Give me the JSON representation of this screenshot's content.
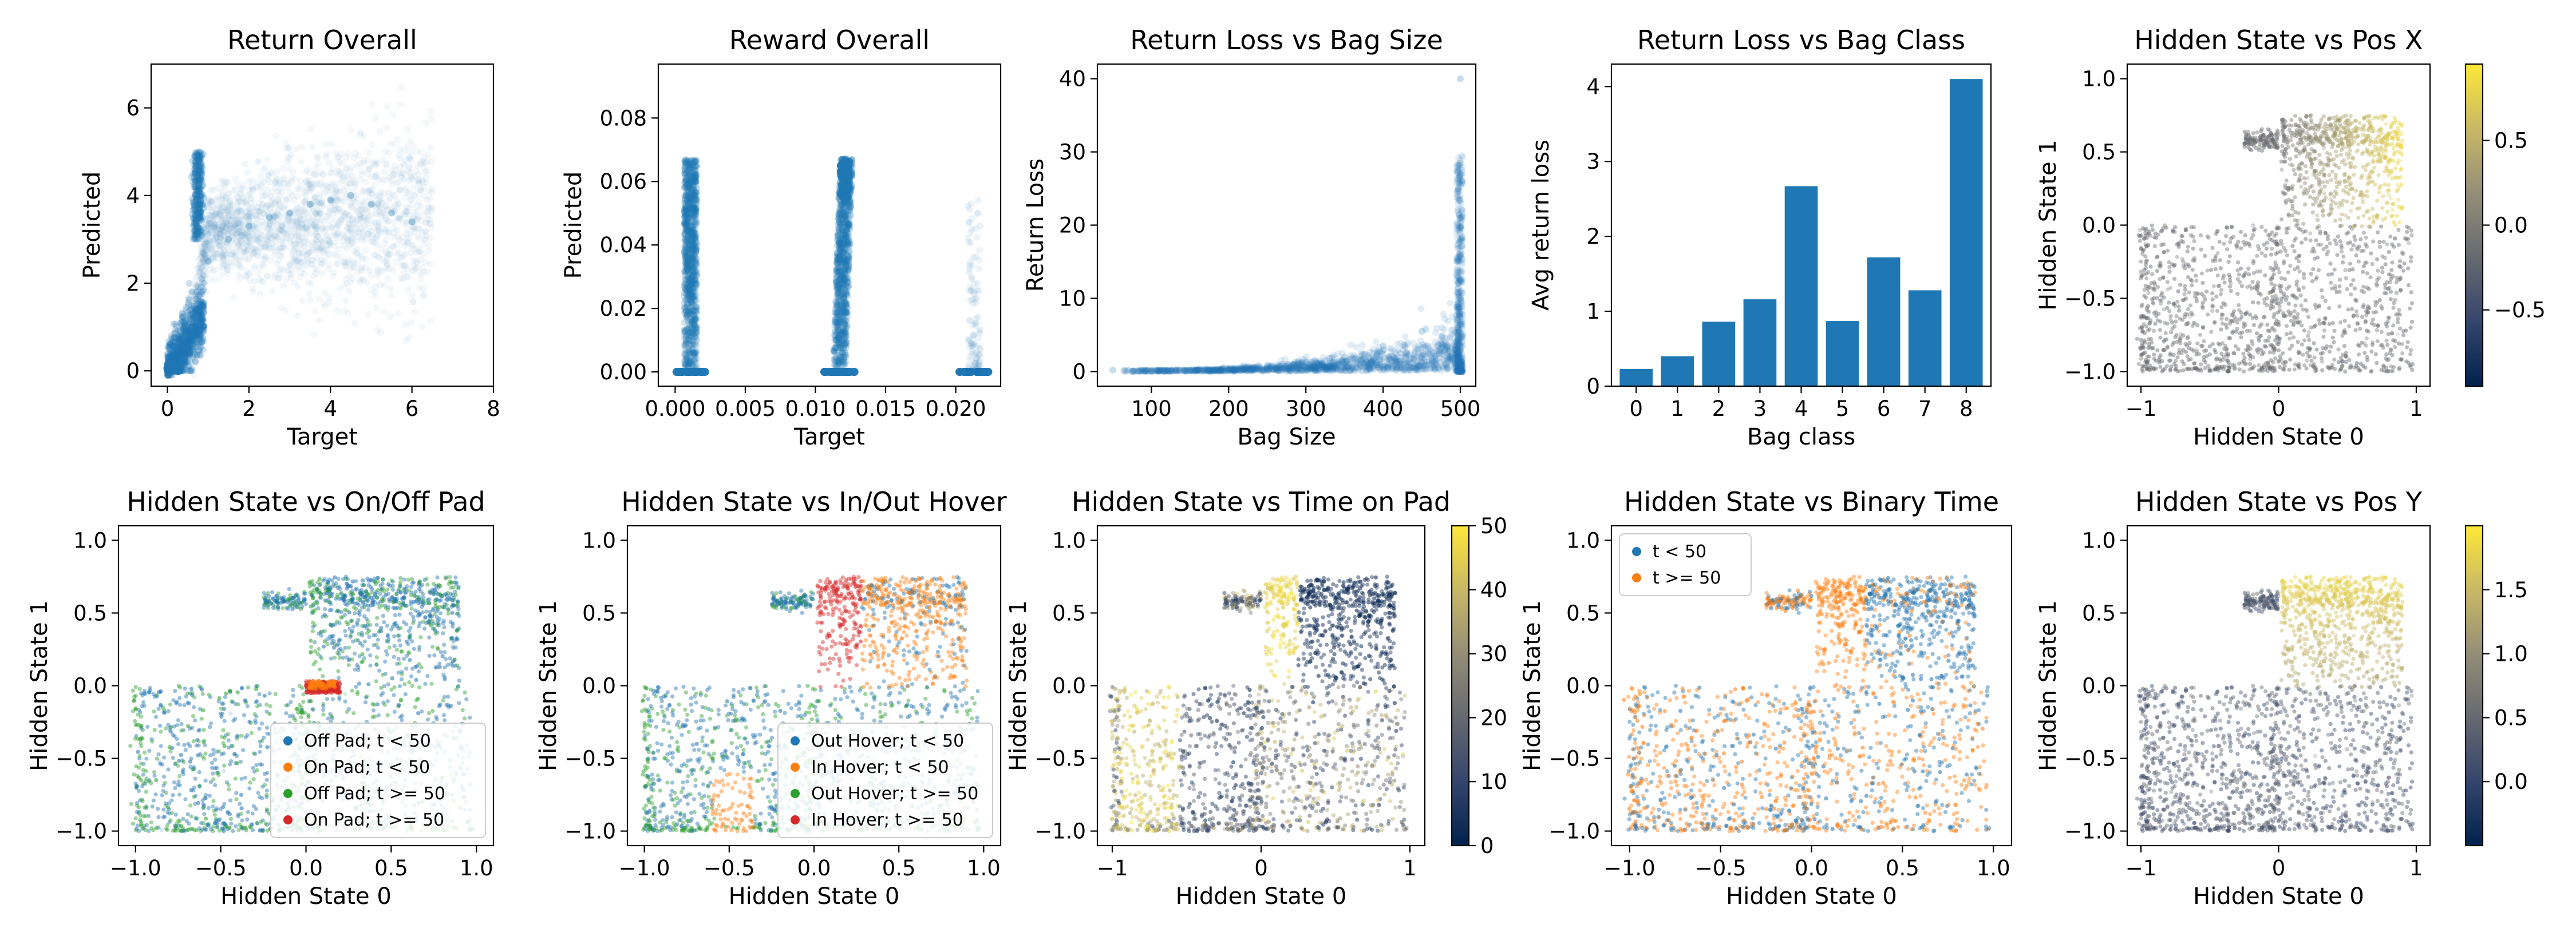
{
  "colors": {
    "c0": "#1f77b4",
    "c1": "#ff7f0e",
    "c2": "#2ca02c",
    "c3": "#d62728",
    "cividis": [
      "#00224e",
      "#35456c",
      "#666970",
      "#948e77",
      "#c8b866",
      "#fee838"
    ]
  },
  "chart_data": [
    {
      "type": "scatter",
      "title": "Return Overall",
      "xlabel": "Target",
      "ylabel": "Predicted",
      "xlim": [
        -0.4,
        8
      ],
      "ylim": [
        -0.35,
        7
      ],
      "xticks": [
        0,
        2,
        4,
        6,
        8
      ],
      "yticks": [
        0,
        2,
        4,
        6
      ],
      "x": [
        0.05,
        0.2,
        0.4,
        0.6,
        0.7,
        0.8,
        1.0,
        1.5,
        2,
        2.5,
        3,
        3.5,
        4,
        4.5,
        5,
        5.5,
        6
      ],
      "y": [
        0.02,
        0.3,
        1.0,
        1.8,
        3.2,
        4.5,
        2.5,
        3.0,
        3.3,
        3.5,
        3.6,
        3.8,
        3.9,
        4.0,
        3.8,
        3.6,
        3.4
      ]
    },
    {
      "type": "scatter",
      "title": "Reward Overall",
      "xlabel": "Target",
      "ylabel": "Predicted",
      "xlim": [
        -0.0012,
        0.0232
      ],
      "ylim": [
        -0.0045,
        0.097
      ],
      "xticks": [
        0.0,
        0.005,
        0.01,
        0.015,
        0.02
      ],
      "xticklabels": [
        "0.000",
        "0.005",
        "0.010",
        "0.015",
        "0.020"
      ],
      "yticks": [
        0.0,
        0.02,
        0.04,
        0.06,
        0.08
      ],
      "yticklabels": [
        "0.00",
        "0.02",
        "0.04",
        "0.06",
        "0.08"
      ],
      "clusters": [
        {
          "x": 0.0011,
          "y_range": [
            0.0,
            0.067
          ]
        },
        {
          "x": 0.0117,
          "y_range": [
            0.0,
            0.067
          ]
        },
        {
          "x": 0.0213,
          "y_range": [
            0.0,
            0.054
          ]
        }
      ]
    },
    {
      "type": "scatter",
      "title": "Return Loss vs Bag Size",
      "xlabel": "Bag Size",
      "ylabel": "Return Loss",
      "xlim": [
        30,
        520
      ],
      "ylim": [
        -2,
        42
      ],
      "xticks": [
        100,
        200,
        300,
        400,
        500
      ],
      "yticks": [
        0,
        10,
        20,
        30,
        40
      ],
      "x": [
        50,
        100,
        150,
        200,
        250,
        300,
        350,
        400,
        450,
        480,
        500,
        500,
        500,
        500
      ],
      "y": [
        0.2,
        0.1,
        0.2,
        0.3,
        0.8,
        1.2,
        2.0,
        3.5,
        5.5,
        3.0,
        40,
        27,
        18,
        10
      ]
    },
    {
      "type": "bar",
      "title": "Return Loss vs Bag Class",
      "xlabel": "Bag class",
      "ylabel": "Avg return loss",
      "categories": [
        "0",
        "1",
        "2",
        "3",
        "4",
        "5",
        "6",
        "7",
        "8"
      ],
      "values": [
        0.23,
        0.4,
        0.86,
        1.16,
        2.67,
        0.87,
        1.72,
        1.28,
        4.1
      ],
      "ylim": [
        0,
        4.3
      ],
      "yticks": [
        0,
        1,
        2,
        3,
        4
      ]
    },
    {
      "type": "scatter",
      "title": "Hidden State vs Pos X",
      "xlabel": "Hidden State 0",
      "ylabel": "Hidden State 1",
      "xlim": [
        -1.1,
        1.1
      ],
      "ylim": [
        -1.1,
        1.1
      ],
      "xticks": [
        -1,
        0,
        1
      ],
      "yticks": [
        -1.0,
        -0.5,
        0.0,
        0.5,
        1.0
      ],
      "yticklabels": [
        "−1.0",
        "−0.5",
        "0.0",
        "0.5",
        "1.0"
      ],
      "colorbar": {
        "colormap": "cividis",
        "range": [
          -0.95,
          0.95
        ],
        "ticks": [
          -0.5,
          0.0,
          0.5
        ],
        "ticklabels": [
          "−0.5",
          "0.0",
          "0.5"
        ]
      }
    },
    {
      "type": "scatter",
      "title": "Hidden State vs On/Off Pad",
      "xlabel": "Hidden State 0",
      "ylabel": "Hidden State 1",
      "xlim": [
        -1.1,
        1.1
      ],
      "ylim": [
        -1.1,
        1.1
      ],
      "xticks": [
        -1.0,
        -0.5,
        0.0,
        0.5,
        1.0
      ],
      "xticklabels": [
        "−1.0",
        "−0.5",
        "0.0",
        "0.5",
        "1.0"
      ],
      "yticks": [
        -1.0,
        -0.5,
        0.0,
        0.5,
        1.0
      ],
      "yticklabels": [
        "−1.0",
        "−0.5",
        "0.0",
        "0.5",
        "1.0"
      ],
      "series": [
        {
          "name": "Off Pad; t < 50",
          "color": "#1f77b4"
        },
        {
          "name": "On Pad; t < 50",
          "color": "#ff7f0e"
        },
        {
          "name": "Off Pad; t >= 50",
          "color": "#2ca02c"
        },
        {
          "name": "On Pad; t >= 50",
          "color": "#d62728"
        }
      ],
      "legend": "lower-right"
    },
    {
      "type": "scatter",
      "title": "Hidden State vs In/Out Hover",
      "xlabel": "Hidden State 0",
      "ylabel": "Hidden State 1",
      "xlim": [
        -1.1,
        1.1
      ],
      "ylim": [
        -1.1,
        1.1
      ],
      "xticks": [
        -1.0,
        -0.5,
        0.0,
        0.5,
        1.0
      ],
      "xticklabels": [
        "−1.0",
        "−0.5",
        "0.0",
        "0.5",
        "1.0"
      ],
      "yticks": [
        -1.0,
        -0.5,
        0.0,
        0.5,
        1.0
      ],
      "yticklabels": [
        "−1.0",
        "−0.5",
        "0.0",
        "0.5",
        "1.0"
      ],
      "series": [
        {
          "name": "Out Hover; t < 50",
          "color": "#1f77b4"
        },
        {
          "name": "In Hover; t < 50",
          "color": "#ff7f0e"
        },
        {
          "name": "Out Hover; t >= 50",
          "color": "#2ca02c"
        },
        {
          "name": "In Hover; t >= 50",
          "color": "#d62728"
        }
      ],
      "legend": "lower-right"
    },
    {
      "type": "scatter",
      "title": "Hidden State vs Time on Pad",
      "xlabel": "Hidden State 0",
      "ylabel": "Hidden State 1",
      "xlim": [
        -1.1,
        1.1
      ],
      "ylim": [
        -1.1,
        1.1
      ],
      "xticks": [
        -1,
        0,
        1
      ],
      "yticks": [
        -1.0,
        -0.5,
        0.0,
        0.5,
        1.0
      ],
      "yticklabels": [
        "−1.0",
        "−0.5",
        "0.0",
        "0.5",
        "1.0"
      ],
      "colorbar": {
        "colormap": "cividis",
        "range": [
          0,
          50
        ],
        "ticks": [
          0,
          10,
          20,
          30,
          40,
          50
        ],
        "ticklabels": [
          "0",
          "10",
          "20",
          "30",
          "40",
          "50"
        ]
      }
    },
    {
      "type": "scatter",
      "title": "Hidden State vs Binary Time",
      "xlabel": "Hidden State 0",
      "ylabel": "Hidden State 1",
      "xlim": [
        -1.1,
        1.1
      ],
      "ylim": [
        -1.1,
        1.1
      ],
      "xticks": [
        -1.0,
        -0.5,
        0.0,
        0.5,
        1.0
      ],
      "xticklabels": [
        "−1.0",
        "−0.5",
        "0.0",
        "0.5",
        "1.0"
      ],
      "yticks": [
        -1.0,
        -0.5,
        0.0,
        0.5,
        1.0
      ],
      "yticklabels": [
        "−1.0",
        "−0.5",
        "0.0",
        "0.5",
        "1.0"
      ],
      "series": [
        {
          "name": "t < 50",
          "color": "#1f77b4"
        },
        {
          "name": "t >= 50",
          "color": "#ff7f0e"
        }
      ],
      "legend": "upper-left"
    },
    {
      "type": "scatter",
      "title": "Hidden State vs Pos Y",
      "xlabel": "Hidden State 0",
      "ylabel": "Hidden State 1",
      "xlim": [
        -1.1,
        1.1
      ],
      "ylim": [
        -1.1,
        1.1
      ],
      "xticks": [
        -1,
        0,
        1
      ],
      "yticks": [
        -1.0,
        -0.5,
        0.0,
        0.5,
        1.0
      ],
      "yticklabels": [
        "−1.0",
        "−0.5",
        "0.0",
        "0.5",
        "1.0"
      ],
      "colorbar": {
        "colormap": "cividis",
        "range": [
          -0.5,
          2.0
        ],
        "ticks": [
          0.0,
          0.5,
          1.0,
          1.5
        ],
        "ticklabels": [
          "0.0",
          "0.5",
          "1.0",
          "1.5"
        ]
      }
    }
  ]
}
